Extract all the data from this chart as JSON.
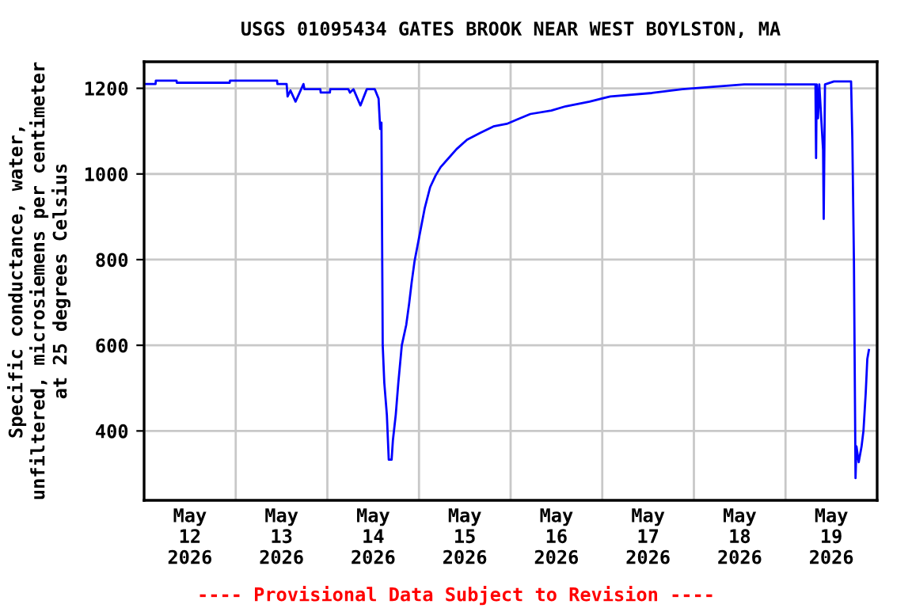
{
  "chart_data": {
    "type": "line",
    "title": "USGS 01095434 GATES BROOK NEAR WEST BOYLSTON, MA",
    "ylabel": "Specific conductance, water,\nunfiltered, microsiemens per centimeter\nat 25 degrees Celsius",
    "annotations": [
      "---- Provisional Data Subject to Revision ----"
    ],
    "xlim": [
      "2026-05-12",
      "2026-05-20"
    ],
    "xticks": [
      {
        "value": "2026-05-12",
        "label": null
      },
      {
        "value": "2026-05-12T12:00",
        "label": "May\n12\n2026"
      },
      {
        "value": "2026-05-13",
        "label": null
      },
      {
        "value": "2026-05-13T12:00",
        "label": "May\n13\n2026"
      },
      {
        "value": "2026-05-14",
        "label": null
      },
      {
        "value": "2026-05-14T12:00",
        "label": "May\n14\n2026"
      },
      {
        "value": "2026-05-15",
        "label": null
      },
      {
        "value": "2026-05-15T12:00",
        "label": "May\n15\n2026"
      },
      {
        "value": "2026-05-16",
        "label": null
      },
      {
        "value": "2026-05-16T12:00",
        "label": "May\n16\n2026"
      },
      {
        "value": "2026-05-17",
        "label": null
      },
      {
        "value": "2026-05-17T12:00",
        "label": "May\n17\n2026"
      },
      {
        "value": "2026-05-18",
        "label": null
      },
      {
        "value": "2026-05-18T12:00",
        "label": "May\n18\n2026"
      },
      {
        "value": "2026-05-19",
        "label": null
      },
      {
        "value": "2026-05-19T12:00",
        "label": "May\n19\n2026"
      },
      {
        "value": "2026-05-20",
        "label": null
      }
    ],
    "ylim": [
      238,
      1262
    ],
    "yticks": [
      400,
      600,
      800,
      1000,
      1200
    ],
    "grid": true,
    "legend": false,
    "series": [
      {
        "color": "#0000ff",
        "x": [
          "2026-05-12T00:00",
          "2026-05-12T03:00",
          "2026-05-12T03:05",
          "2026-05-12T08:30",
          "2026-05-12T08:35",
          "2026-05-12T22:25",
          "2026-05-12T22:30",
          "2026-05-13T10:50",
          "2026-05-13T10:55",
          "2026-05-13T13:20",
          "2026-05-13T13:35",
          "2026-05-13T14:20",
          "2026-05-13T15:40",
          "2026-05-13T17:45",
          "2026-05-13T18:00",
          "2026-05-13T22:10",
          "2026-05-13T22:15",
          "2026-05-14T00:40",
          "2026-05-14T00:45",
          "2026-05-14T05:30",
          "2026-05-14T05:55",
          "2026-05-14T06:50",
          "2026-05-14T08:40",
          "2026-05-14T10:20",
          "2026-05-14T12:25",
          "2026-05-14T13:25",
          "2026-05-14T13:50",
          "2026-05-14T14:10",
          "2026-05-14T14:30",
          "2026-05-14T14:55",
          "2026-05-14T15:35",
          "2026-05-14T16:05",
          "2026-05-14T16:50",
          "2026-05-14T17:10",
          "2026-05-14T17:55",
          "2026-05-14T18:35",
          "2026-05-14T19:30",
          "2026-05-14T20:40",
          "2026-05-14T21:25",
          "2026-05-14T22:05",
          "2026-05-14T22:50",
          "2026-05-15T00:10",
          "2026-05-15T01:30",
          "2026-05-15T02:55",
          "2026-05-15T04:20",
          "2026-05-15T05:40",
          "2026-05-15T07:45",
          "2026-05-15T09:50",
          "2026-05-15T12:35",
          "2026-05-15T16:05",
          "2026-05-15T19:30",
          "2026-05-15T23:00",
          "2026-05-16T01:40",
          "2026-05-16T05:10",
          "2026-05-16T10:40",
          "2026-05-16T14:25",
          "2026-05-16T20:40",
          "2026-05-17T02:05",
          "2026-05-17T13:00",
          "2026-05-17T21:00",
          "2026-05-18T13:10",
          "2026-05-19T07:50",
          "2026-05-19T08:00",
          "2026-05-19T08:10",
          "2026-05-19T08:30",
          "2026-05-19T08:50",
          "2026-05-19T09:50",
          "2026-05-19T10:00",
          "2026-05-19T10:20",
          "2026-05-19T12:40",
          "2026-05-19T17:10",
          "2026-05-19T17:30",
          "2026-05-19T17:55",
          "2026-05-19T18:20",
          "2026-05-19T18:35",
          "2026-05-19T19:10",
          "2026-05-19T19:55",
          "2026-05-19T20:25",
          "2026-05-19T21:00",
          "2026-05-19T21:25",
          "2026-05-19T21:50"
        ],
        "values": [
          1210,
          1210,
          1218,
          1218,
          1213,
          1213,
          1218,
          1218,
          1210,
          1210,
          1181,
          1195,
          1169,
          1210,
          1198,
          1198,
          1190,
          1190,
          1198,
          1198,
          1190,
          1198,
          1160,
          1198,
          1198,
          1176,
          1105,
          1120,
          600,
          512,
          438,
          333,
          333,
          378,
          438,
          512,
          600,
          648,
          697,
          747,
          796,
          858,
          920,
          969,
          996,
          1016,
          1037,
          1058,
          1080,
          1096,
          1111,
          1117,
          1127,
          1140,
          1148,
          1158,
          1169,
          1181,
          1189,
          1198,
          1209,
          1209,
          1037,
          1209,
          1130,
          1209,
          1056,
          895,
          1209,
          1216,
          1216,
          1080,
          796,
          290,
          364,
          327,
          364,
          401,
          488,
          568,
          589
        ]
      }
    ]
  }
}
